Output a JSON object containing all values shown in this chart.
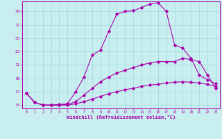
{
  "title": "",
  "xlabel": "Windchill (Refroidissement éolien,°C)",
  "ylabel": "",
  "background_color": "#c8eef0",
  "line_color": "#aa00aa",
  "grid_color": "#a0d8e0",
  "xlim": [
    -0.5,
    23.5
  ],
  "ylim": [
    14.5,
    30.5
  ],
  "xticks": [
    0,
    1,
    2,
    3,
    4,
    5,
    6,
    7,
    8,
    9,
    10,
    11,
    12,
    13,
    14,
    15,
    16,
    17,
    18,
    19,
    20,
    21,
    22,
    23
  ],
  "yticks": [
    15,
    17,
    19,
    21,
    23,
    25,
    27,
    29
  ],
  "line1_x": [
    0,
    1,
    2,
    3,
    4,
    5,
    6,
    7,
    8,
    9,
    10,
    11,
    12,
    13,
    14,
    15,
    16,
    17,
    18,
    19,
    20,
    21,
    22,
    23
  ],
  "line1_y": [
    16.8,
    15.4,
    15.0,
    15.0,
    15.1,
    15.2,
    17.0,
    19.2,
    22.5,
    23.2,
    26.0,
    28.6,
    29.0,
    29.1,
    29.6,
    30.1,
    30.3,
    29.0,
    24.0,
    23.5,
    22.0,
    19.5,
    18.8,
    18.2
  ],
  "line2_x": [
    0,
    1,
    2,
    3,
    4,
    5,
    6,
    7,
    8,
    9,
    10,
    11,
    12,
    13,
    14,
    15,
    16,
    17,
    18,
    19,
    20,
    21,
    22,
    23
  ],
  "line2_y": [
    16.8,
    15.4,
    15.0,
    15.0,
    15.0,
    15.1,
    15.5,
    16.5,
    17.5,
    18.5,
    19.2,
    19.8,
    20.2,
    20.6,
    21.0,
    21.3,
    21.5,
    21.5,
    21.5,
    22.0,
    21.8,
    21.5,
    19.5,
    17.5
  ],
  "line3_x": [
    0,
    1,
    2,
    3,
    4,
    5,
    6,
    7,
    8,
    9,
    10,
    11,
    12,
    13,
    14,
    15,
    16,
    17,
    18,
    19,
    20,
    21,
    22,
    23
  ],
  "line3_y": [
    16.8,
    15.4,
    15.0,
    15.0,
    15.0,
    15.0,
    15.2,
    15.5,
    15.9,
    16.3,
    16.7,
    17.0,
    17.3,
    17.5,
    17.8,
    18.0,
    18.1,
    18.3,
    18.4,
    18.5,
    18.4,
    18.3,
    18.1,
    17.8
  ]
}
